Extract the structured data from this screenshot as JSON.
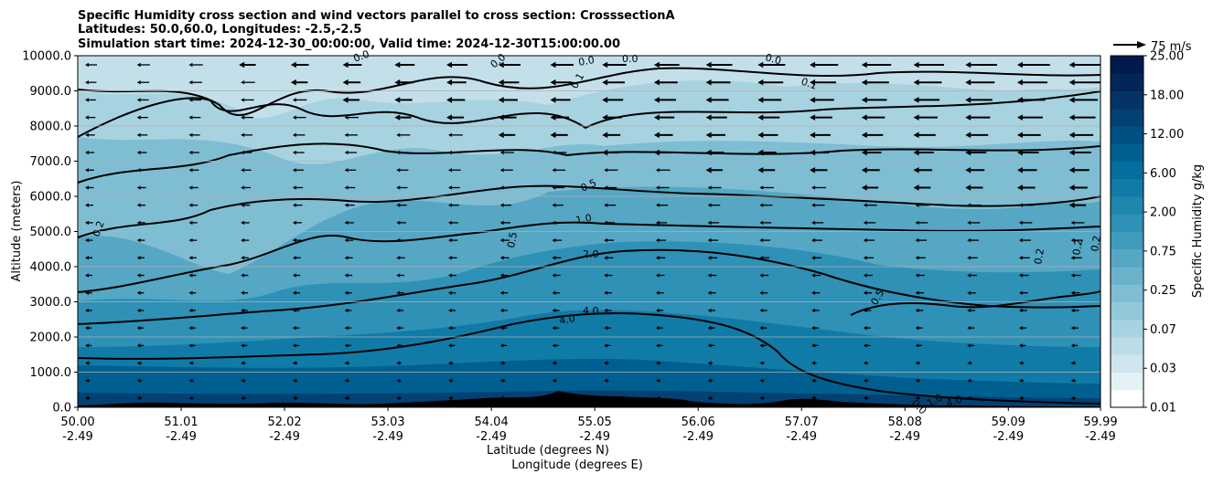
{
  "chart_data": {
    "type": "filled-contour",
    "title_lines": [
      "Specific Humidity cross section and wind vectors parallel to cross section: CrosssectionA",
      "Latitudes: 50.0,60.0, Longitudes: -2.5,-2.5",
      "Simulation start time: 2024-12-30_00:00:00, Valid time: 2024-12-30T15:00:00.00"
    ],
    "ylabel": "Altitude (meters)",
    "xlabel_lat": "Latitude (degrees N)",
    "xlabel_lon": "Longitude (degrees E)",
    "xlim": [
      50.0,
      59.99
    ],
    "ylim": [
      0,
      10000
    ],
    "grid": "horizontal",
    "x_ticks": [
      {
        "lat": "50.00",
        "lon": "-2.49"
      },
      {
        "lat": "51.01",
        "lon": "-2.49"
      },
      {
        "lat": "52.02",
        "lon": "-2.49"
      },
      {
        "lat": "53.03",
        "lon": "-2.49"
      },
      {
        "lat": "54.04",
        "lon": "-2.49"
      },
      {
        "lat": "55.05",
        "lon": "-2.49"
      },
      {
        "lat": "56.06",
        "lon": "-2.49"
      },
      {
        "lat": "57.07",
        "lon": "-2.49"
      },
      {
        "lat": "58.08",
        "lon": "-2.49"
      },
      {
        "lat": "59.09",
        "lon": "-2.49"
      },
      {
        "lat": "59.99",
        "lon": "-2.49"
      }
    ],
    "y_ticks": [
      "0.0",
      "1000.0",
      "2000.0",
      "3000.0",
      "4000.0",
      "5000.0",
      "6000.0",
      "7000.0",
      "8000.0",
      "9000.0",
      "10000.0"
    ],
    "colorbar": {
      "label": "Specific Humidity g/kg",
      "tick_labels": [
        "0.01",
        "0.03",
        "0.07",
        "0.25",
        "0.75",
        "2.00",
        "6.00",
        "12.00",
        "18.00",
        "25.00"
      ],
      "colors": [
        "#ffffff",
        "#e4f1f5",
        "#cfe6ee",
        "#bcdde8",
        "#a7d3e1",
        "#93c8da",
        "#7fbdd3",
        "#6ab2cc",
        "#55a7c4",
        "#409cbd",
        "#2f91b6",
        "#1f86ae",
        "#117ba7",
        "#046f9f",
        "#005f91",
        "#004f82",
        "#034173",
        "#053365",
        "#042557",
        "#001a4c"
      ]
    },
    "quiver_key": {
      "label": "75 m/s"
    },
    "contour_labels": [
      "0.0",
      "0.0",
      "0.0",
      "0.1",
      "0.1",
      "0.0",
      "0.0",
      "0.5",
      "1.0",
      "2.0",
      "4.0",
      "4.0",
      "0.2",
      "0.5",
      "0.2",
      "0.2",
      "0.5",
      "0.0",
      "1.0",
      "4.0",
      "0.2"
    ]
  }
}
